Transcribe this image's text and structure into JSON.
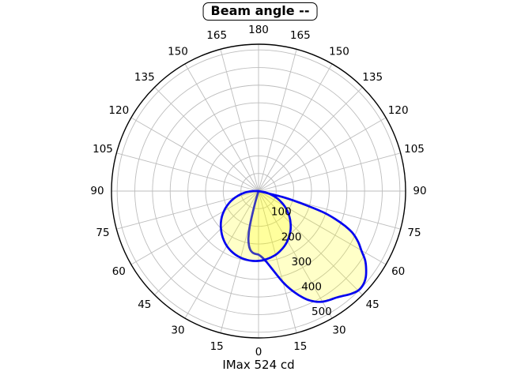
{
  "title": "Beam angle --",
  "footer": "IMax 524 cd",
  "colors": {
    "background": "#ffffff",
    "curve": "#0404f0",
    "lobe_fill": "#ffff00",
    "lobe_fill_opacity": 0.215,
    "grid": "#bdbdbd",
    "outer_ring": "#000000",
    "text": "#000000"
  },
  "chart_data": {
    "type": "polar",
    "subtype": "photometric-intensity-distribution",
    "units": "cd",
    "imax_cd": 524,
    "angle_convention": "0 deg at bottom (nadir), labels mirrored left/right up to 180 deg at top; negative sample angles = left half",
    "angle_tick_labels": [
      0,
      15,
      30,
      45,
      60,
      75,
      90,
      105,
      120,
      135,
      150,
      165,
      180
    ],
    "r_axis": {
      "max": 545,
      "grid_interval": 65.5,
      "tick_values": [
        100,
        200,
        300,
        400,
        500
      ],
      "tick_label_angle_deg": 22,
      "grid": true
    },
    "legend": null,
    "series": [
      {
        "name": "curve_1_wide_lobe",
        "points": [
          [
            -18,
            0
          ],
          [
            -16,
            50
          ],
          [
            -14,
            135
          ],
          [
            -12,
            180
          ],
          [
            -10,
            205
          ],
          [
            -8,
            220
          ],
          [
            -6,
            228
          ],
          [
            -4,
            232
          ],
          [
            -2,
            234
          ],
          [
            0,
            236
          ],
          [
            3,
            246
          ],
          [
            6,
            262
          ],
          [
            9,
            285
          ],
          [
            12,
            315
          ],
          [
            15,
            350
          ],
          [
            18,
            383
          ],
          [
            21,
            413
          ],
          [
            24,
            440
          ],
          [
            27,
            460
          ],
          [
            30,
            474
          ],
          [
            33,
            482
          ],
          [
            36,
            489
          ],
          [
            39,
            500
          ],
          [
            42,
            513
          ],
          [
            45,
            522
          ],
          [
            48,
            521
          ],
          [
            51,
            511
          ],
          [
            54,
            493
          ],
          [
            57,
            471
          ],
          [
            60,
            440
          ],
          [
            63,
            414
          ],
          [
            66,
            381
          ],
          [
            68,
            346
          ],
          [
            70,
            302
          ],
          [
            72,
            248
          ],
          [
            74,
            163
          ],
          [
            76,
            95
          ],
          [
            78,
            0
          ]
        ]
      },
      {
        "name": "curve_2_round_lobe",
        "points": [
          [
            -94.7,
            0
          ],
          [
            -90,
            21
          ],
          [
            -85,
            45
          ],
          [
            -80,
            66
          ],
          [
            -75,
            88
          ],
          [
            -70,
            109
          ],
          [
            -65,
            129
          ],
          [
            -60,
            148
          ],
          [
            -55,
            166
          ],
          [
            -50,
            182
          ],
          [
            -45,
            197
          ],
          [
            -40,
            211
          ],
          [
            -35,
            224
          ],
          [
            -30,
            235
          ],
          [
            -25,
            244
          ],
          [
            -20,
            251
          ],
          [
            -15,
            256
          ],
          [
            -10,
            259
          ],
          [
            -5,
            260
          ],
          [
            0,
            259
          ],
          [
            5,
            256
          ],
          [
            10,
            251
          ],
          [
            15,
            245
          ],
          [
            20,
            236
          ],
          [
            25,
            226
          ],
          [
            30,
            214
          ],
          [
            35,
            200
          ],
          [
            40,
            185
          ],
          [
            45,
            168
          ],
          [
            50,
            150
          ],
          [
            55,
            131
          ],
          [
            60,
            111
          ],
          [
            65,
            90
          ],
          [
            70,
            69
          ],
          [
            75,
            46
          ],
          [
            80,
            24
          ],
          [
            85.3,
            0
          ]
        ]
      }
    ]
  }
}
